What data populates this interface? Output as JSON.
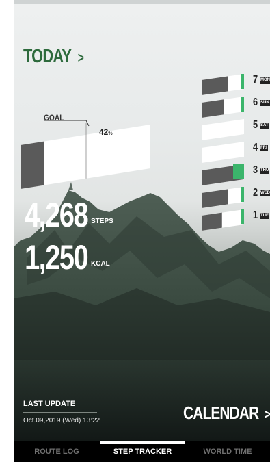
{
  "header": {
    "title": "TODAY",
    "chevron": ">"
  },
  "goal": {
    "label": "GOAL",
    "percent_value": "42",
    "percent_unit": "%",
    "progress": 0.42
  },
  "steps": {
    "value": "4,268",
    "unit": "STEPS"
  },
  "kcal": {
    "value": "1,250",
    "unit": "KCAL"
  },
  "week": [
    {
      "day": "7",
      "tag": "MON",
      "fraction": 0.62,
      "highlight": false
    },
    {
      "day": "6",
      "tag": "SUN",
      "fraction": 0.53,
      "highlight": false
    },
    {
      "day": "5",
      "tag": "SAT",
      "fraction": 0.0,
      "highlight": false
    },
    {
      "day": "4",
      "tag": "FRI",
      "fraction": 0.0,
      "highlight": false
    },
    {
      "day": "3",
      "tag": "THU",
      "fraction": 0.98,
      "highlight": true
    },
    {
      "day": "2",
      "tag": "WED",
      "fraction": 0.62,
      "highlight": false
    },
    {
      "day": "1",
      "tag": "TUE",
      "fraction": 0.48,
      "highlight": false
    }
  ],
  "last_update": {
    "title": "LAST UPDATE",
    "timestamp": "Oct.09,2019 (Wed) 13:22"
  },
  "calendar": {
    "label": "CALENDAR",
    "chevron": ">"
  },
  "tabs": [
    {
      "label": "ROUTE LOG",
      "active": false
    },
    {
      "label": "STEP TRACKER",
      "active": true
    },
    {
      "label": "WORLD TIME",
      "active": false
    }
  ],
  "colors": {
    "accent": "#2d6a3c",
    "highlight": "#3bb56b",
    "bar_dark": "#555555",
    "bar_light": "#ffffff"
  }
}
